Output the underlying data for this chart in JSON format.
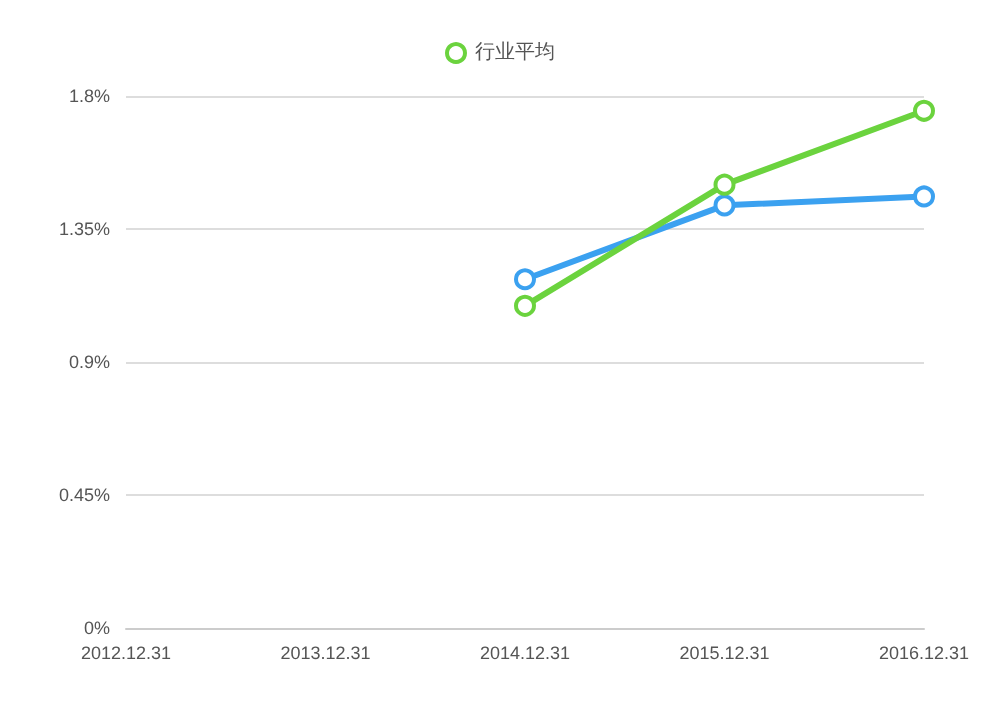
{
  "chart_data": {
    "type": "line",
    "categories": [
      "2012.12.31",
      "2013.12.31",
      "2014.12.31",
      "2015.12.31",
      "2016.12.31"
    ],
    "series": [
      {
        "color": "#3ba1f0",
        "values": [
          null,
          null,
          1.18,
          1.43,
          1.46
        ]
      },
      {
        "name": "行业平均",
        "color": "#6bd33e",
        "values": [
          null,
          null,
          1.09,
          1.5,
          1.75
        ]
      }
    ],
    "ylim": [
      0,
      1.8
    ],
    "yticks": [
      {
        "value": 0,
        "label": "0%"
      },
      {
        "value": 0.45,
        "label": "0.45%"
      },
      {
        "value": 0.9,
        "label": "0.9%"
      },
      {
        "value": 1.35,
        "label": "1.35%"
      },
      {
        "value": 1.8,
        "label": "1.8%"
      }
    ],
    "grid": "y",
    "legend": "top",
    "marker": "circle"
  }
}
